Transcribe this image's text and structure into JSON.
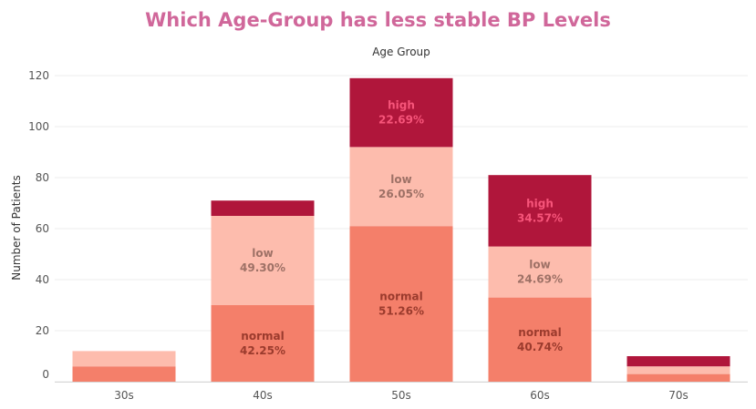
{
  "chart_data": {
    "type": "bar",
    "stacked": true,
    "title": "Which Age-Group has less stable BP Levels",
    "group_label": "Age Group",
    "ylabel": "Number of Patients",
    "xlabel": "",
    "ylim": [
      0,
      120
    ],
    "yticks": [
      0,
      20,
      40,
      60,
      80,
      100,
      120
    ],
    "grid": true,
    "categories": [
      "30s",
      "40s",
      "50s",
      "60s",
      "70s"
    ],
    "series": [
      {
        "name": "normal",
        "color": "#f47f6a",
        "label_color": "#9b3b2d",
        "values": [
          6,
          30,
          61,
          33,
          3
        ]
      },
      {
        "name": "low",
        "color": "#fdbcad",
        "label_color": "#9e7166",
        "values": [
          6,
          35,
          31,
          20,
          3
        ]
      },
      {
        "name": "high",
        "color": "#b0163b",
        "label_color": "#f7557a",
        "values": [
          0,
          6,
          27,
          28,
          4
        ]
      }
    ],
    "data_labels": [
      {
        "category": "40s",
        "series": "normal",
        "name": "normal",
        "pct": "42.25%"
      },
      {
        "category": "40s",
        "series": "low",
        "name": "low",
        "pct": "49.30%"
      },
      {
        "category": "50s",
        "series": "normal",
        "name": "normal",
        "pct": "51.26%"
      },
      {
        "category": "50s",
        "series": "low",
        "name": "low",
        "pct": "26.05%"
      },
      {
        "category": "50s",
        "series": "high",
        "name": "high",
        "pct": "22.69%"
      },
      {
        "category": "60s",
        "series": "normal",
        "name": "normal",
        "pct": "40.74%"
      },
      {
        "category": "60s",
        "series": "low",
        "name": "low",
        "pct": "24.69%"
      },
      {
        "category": "60s",
        "series": "high",
        "name": "high",
        "pct": "34.57%"
      }
    ]
  }
}
